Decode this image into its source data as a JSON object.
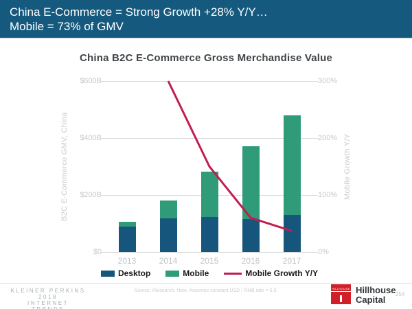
{
  "header": {
    "line1": "China E-Commerce = Strong Growth +28% Y/Y…",
    "line2": "Mobile = 73% of GMV"
  },
  "chart_data": {
    "type": "bar",
    "subtype": "stacked-bar-with-line",
    "title": "China B2C E-Commerce Gross Merchandise Value",
    "categories": [
      "2013",
      "2014",
      "2015",
      "2016",
      "2017"
    ],
    "series": [
      {
        "name": "Desktop",
        "type": "bar",
        "axis": "left",
        "color": "#16567C",
        "values": [
          90,
          117,
          124,
          115,
          129
        ]
      },
      {
        "name": "Mobile",
        "type": "bar",
        "axis": "left",
        "color": "#2F9B78",
        "values": [
          17,
          64,
          158,
          255,
          350
        ]
      },
      {
        "name": "Mobile Growth Y/Y",
        "type": "line",
        "axis": "right",
        "color": "#C31C4E",
        "values": [
          null,
          300,
          150,
          60,
          37
        ]
      }
    ],
    "totals_gmv_billion_usd": [
      107,
      181,
      282,
      370,
      479
    ],
    "left_axis": {
      "label": "B2C E-Commerce GMV, China",
      "range": [
        0,
        600
      ],
      "ticks": [
        "$0",
        "$200B",
        "$400B",
        "$600B"
      ]
    },
    "right_axis": {
      "label": "Mobile Growth  Y/Y",
      "range": [
        0,
        300
      ],
      "ticks": [
        "0%",
        "100%",
        "200%",
        "300%"
      ]
    },
    "grid": true,
    "legend_position": "bottom"
  },
  "footer": {
    "brand_lines": [
      "KLEINER PERKINS",
      "2018",
      "INTERNET TRENDS"
    ],
    "source_note": "Source: iResearch.  Note: Assumes constant USD / RMB rate = 6.5.",
    "hillhouse_logo_text": "HILLHOUSE",
    "hillhouse_name_line1": "Hillhouse",
    "hillhouse_name_line2": "Capital",
    "page_number": "254"
  },
  "colors": {
    "banner_bg": "#155A7E",
    "desktop_bar": "#16567C",
    "mobile_bar": "#2F9B78",
    "growth_line": "#C31C4E",
    "gridline": "#D9D9D9",
    "axis_text": "#C5C9CC",
    "title_text": "#404548",
    "hillhouse_red": "#D0212B"
  }
}
